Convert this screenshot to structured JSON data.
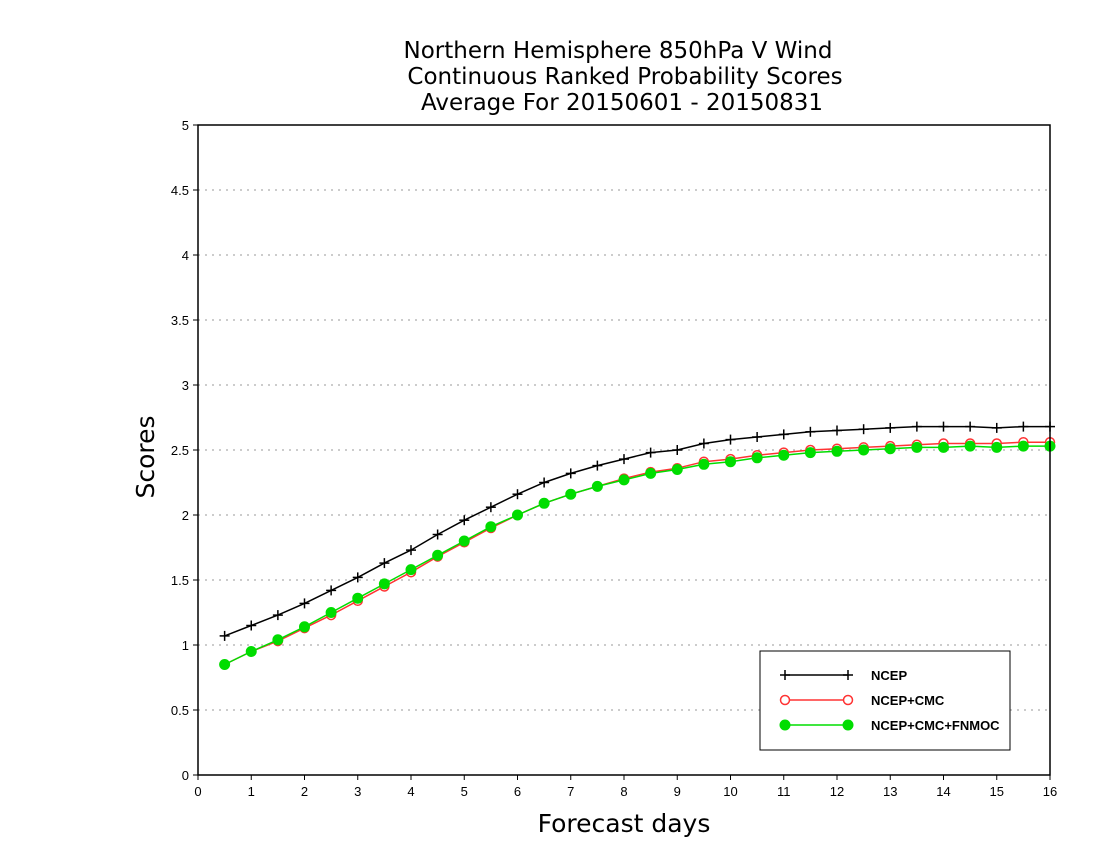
{
  "chart_data": {
    "type": "line",
    "title": [
      "Northern Hemisphere 850hPa V Wind",
      "Continuous Ranked Probability Scores",
      "Average For 20150601 - 20150831"
    ],
    "xlabel": "Forecast days",
    "ylabel": "Scores",
    "xlim": [
      0,
      16
    ],
    "ylim": [
      0,
      5
    ],
    "xticks": [
      "0",
      "1",
      "2",
      "3",
      "4",
      "5",
      "6",
      "7",
      "8",
      "9",
      "10",
      "11",
      "12",
      "13",
      "14",
      "15",
      "16"
    ],
    "yticks": [
      "0",
      "0.5",
      "1",
      "1.5",
      "2",
      "2.5",
      "3",
      "3.5",
      "4",
      "4.5",
      "5"
    ],
    "grid": true,
    "legend_position": "bottom-right",
    "x": [
      0.5,
      1,
      1.5,
      2,
      2.5,
      3,
      3.5,
      4,
      4.5,
      5,
      5.5,
      6,
      6.5,
      7,
      7.5,
      8,
      8.5,
      9,
      9.5,
      10,
      10.5,
      11,
      11.5,
      12,
      12.5,
      13,
      13.5,
      14,
      14.5,
      15,
      15.5,
      16
    ],
    "series": [
      {
        "name": "NCEP",
        "color": "#000000",
        "marker": "plus",
        "values": [
          1.07,
          1.15,
          1.23,
          1.32,
          1.42,
          1.52,
          1.63,
          1.73,
          1.85,
          1.96,
          2.06,
          2.16,
          2.25,
          2.32,
          2.38,
          2.43,
          2.48,
          2.5,
          2.55,
          2.58,
          2.6,
          2.62,
          2.64,
          2.65,
          2.66,
          2.67,
          2.68,
          2.68,
          2.68,
          2.67,
          2.68,
          2.68
        ]
      },
      {
        "name": "NCEP+CMC",
        "color": "#ff3333",
        "marker": "open-circle",
        "values": [
          0.85,
          0.95,
          1.03,
          1.13,
          1.23,
          1.34,
          1.45,
          1.56,
          1.68,
          1.79,
          1.9,
          2.0,
          2.09,
          2.16,
          2.22,
          2.28,
          2.33,
          2.36,
          2.41,
          2.43,
          2.46,
          2.48,
          2.5,
          2.51,
          2.52,
          2.53,
          2.54,
          2.55,
          2.55,
          2.55,
          2.56,
          2.56
        ]
      },
      {
        "name": "NCEP+CMC+FNMOC",
        "color": "#00dd00",
        "marker": "filled-circle",
        "values": [
          0.85,
          0.95,
          1.04,
          1.14,
          1.25,
          1.36,
          1.47,
          1.58,
          1.69,
          1.8,
          1.91,
          2.0,
          2.09,
          2.16,
          2.22,
          2.27,
          2.32,
          2.35,
          2.39,
          2.41,
          2.44,
          2.46,
          2.48,
          2.49,
          2.5,
          2.51,
          2.52,
          2.52,
          2.53,
          2.52,
          2.53,
          2.53
        ]
      }
    ]
  }
}
